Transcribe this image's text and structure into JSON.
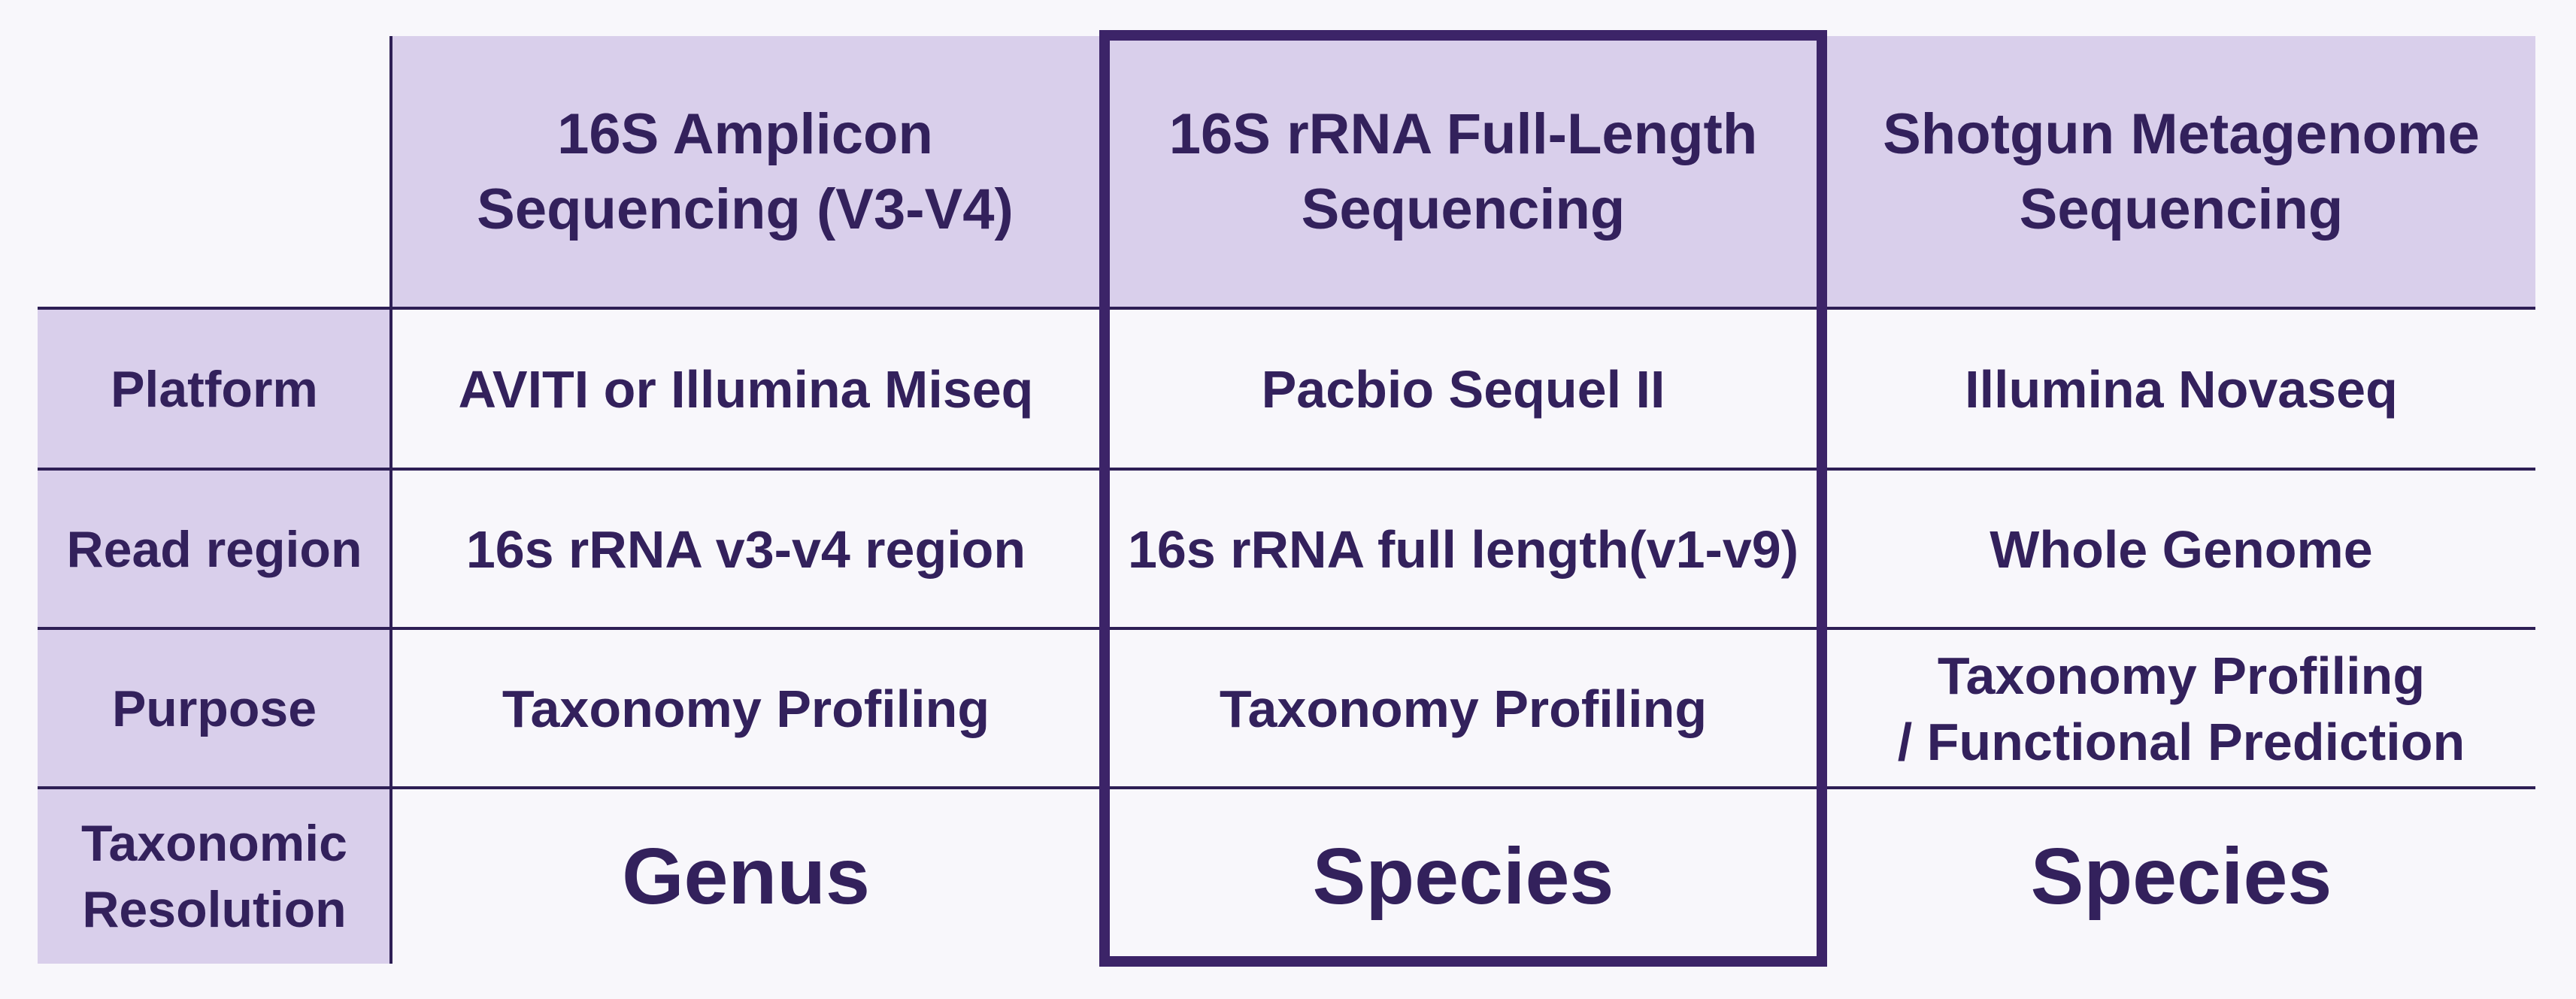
{
  "table": {
    "columns": [
      "16S Amplicon\nSequencing (V3-V4)",
      "16S rRNA Full-Length\nSequencing",
      "Shotgun Metagenome\nSequencing"
    ],
    "rows": [
      {
        "label": "Platform",
        "cells": [
          "AVITI or Illumina Miseq",
          "Pacbio Sequel II",
          "Illumina Novaseq"
        ]
      },
      {
        "label": "Read region",
        "cells": [
          "16s rRNA v3-v4 region",
          "16s rRNA full length(v1-v9)",
          "Whole Genome"
        ]
      },
      {
        "label": "Purpose",
        "cells": [
          "Taxonomy Profiling",
          "Taxonomy Profiling",
          "Taxonomy Profiling\n/ Functional Prediction"
        ]
      },
      {
        "label": "Taxonomic\nResolution",
        "cells": [
          "Genus",
          "Species",
          "Species"
        ]
      }
    ],
    "highlighted_column": 1
  },
  "colors": {
    "header_bg": "#d9cfeb",
    "text": "#33215c",
    "line": "#2e1f55",
    "highlight_border": "#3c2468"
  }
}
